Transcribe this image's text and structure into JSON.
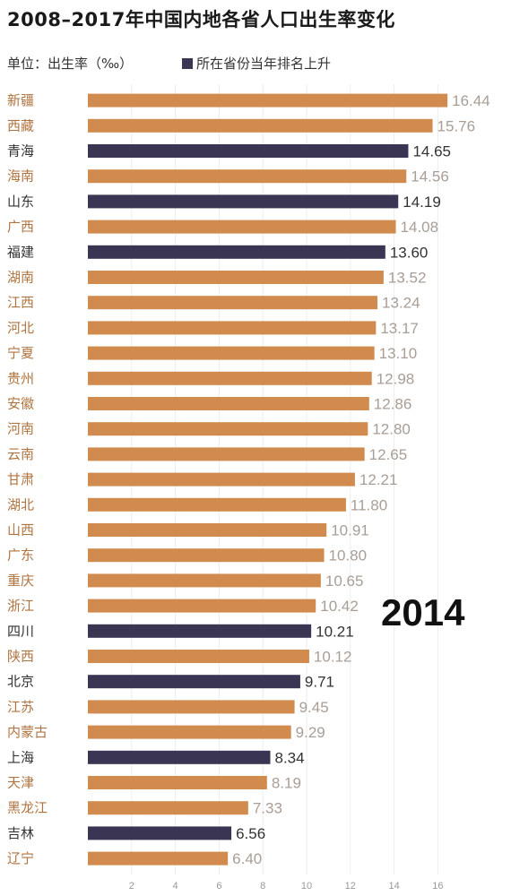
{
  "header": {
    "title": "2008–2017年中国内地各省人口出生率变化",
    "unit": "单位：出生率（‰）",
    "legend_label": "所在省份当年排名上升"
  },
  "year": "2014",
  "colors": {
    "normal_bar": "#d28b4e",
    "highlight_bar": "#3a3552",
    "normal_label": "#b07440",
    "highlight_label": "#333333",
    "normal_value": "#a99e96",
    "highlight_value": "#333333"
  },
  "chart_data": {
    "type": "bar",
    "orientation": "horizontal",
    "categories": [
      "新疆",
      "西藏",
      "青海",
      "海南",
      "山东",
      "广西",
      "福建",
      "湖南",
      "江西",
      "河北",
      "宁夏",
      "贵州",
      "安徽",
      "河南",
      "云南",
      "甘肃",
      "湖北",
      "山西",
      "广东",
      "重庆",
      "浙江",
      "四川",
      "陕西",
      "北京",
      "江苏",
      "内蒙古",
      "上海",
      "天津",
      "黑龙江",
      "吉林",
      "辽宁"
    ],
    "values": [
      16.44,
      15.76,
      14.65,
      14.56,
      14.19,
      14.08,
      13.6,
      13.52,
      13.24,
      13.17,
      13.1,
      12.98,
      12.86,
      12.8,
      12.65,
      12.21,
      11.8,
      10.91,
      10.8,
      10.65,
      10.42,
      10.21,
      10.12,
      9.71,
      9.45,
      9.29,
      8.34,
      8.19,
      7.33,
      6.56,
      6.4
    ],
    "value_labels": [
      "16.44",
      "15.76",
      "14.65",
      "14.56",
      "14.19",
      "14.08",
      "13.60",
      "13.52",
      "13.24",
      "13.17",
      "13.10",
      "12.98",
      "12.86",
      "12.80",
      "12.65",
      "12.21",
      "11.80",
      "10.91",
      "10.80",
      "10.65",
      "10.42",
      "10.21",
      "10.12",
      "9.71",
      "9.45",
      "9.29",
      "8.34",
      "8.19",
      "7.33",
      "6.56",
      "6.40"
    ],
    "rank_up": [
      false,
      false,
      true,
      false,
      true,
      false,
      true,
      false,
      false,
      false,
      false,
      false,
      false,
      false,
      false,
      false,
      false,
      false,
      false,
      false,
      false,
      true,
      false,
      true,
      false,
      false,
      true,
      false,
      false,
      true,
      false
    ],
    "x_ticks": [
      "2",
      "4",
      "6",
      "8",
      "10",
      "12",
      "14",
      "16"
    ],
    "xlim": [
      0,
      17
    ],
    "grid": true,
    "title": "2008–2017年中国内地各省人口出生率变化",
    "xlabel": "",
    "ylabel": ""
  }
}
